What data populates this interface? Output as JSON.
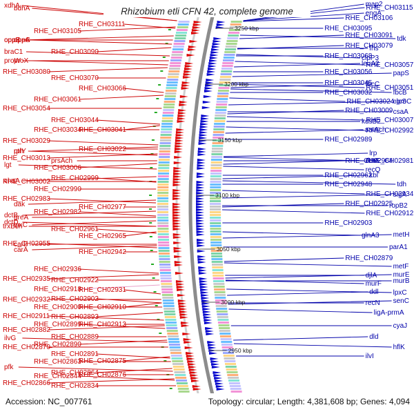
{
  "title": "Rhizobium etli CFN 42, complete genome",
  "footer": {
    "accession": "Accession: NC_007761",
    "summary": "Topology: circular; Length: 4,381,608 bp; Genes: 4,094"
  },
  "colors": {
    "reverse_strand": "#dd0000",
    "forward_strand": "#0000cc",
    "reverse_label": "#cc0000",
    "forward_label": "#0000aa",
    "highlight_label": "#e8a0c8",
    "backbone": "#8c8c8c",
    "tick_marker": "#22aa22"
  },
  "scale_ticks": [
    "3250 kbp",
    "3200 kbp",
    "3150 kbp",
    "3100 kbp",
    "3050 kbp",
    "3000 kbp",
    "2950 kbp"
  ],
  "left_labels": [
    [
      "xdhA",
      11
    ],
    [
      "bdhA",
      15
    ],
    [
      "RHE_CH03111",
      38
    ],
    [
      "RHE_CH03105",
      48
    ],
    [
      "oppF",
      61
    ],
    [
      "oppC",
      61
    ],
    [
      "oppB",
      61
    ],
    [
      "oppA",
      61
    ],
    [
      "braC1",
      78
    ],
    [
      "RHE_CH03090",
      78
    ],
    [
      "proW",
      91
    ],
    [
      "proX",
      91
    ],
    [
      "RHE_CH03080",
      107
    ],
    [
      "RHE_CH03070",
      116
    ],
    [
      "RHE_CH03066",
      131
    ],
    [
      "RHE_CH03061",
      147
    ],
    [
      "RHE_CH03054",
      160
    ],
    [
      "RHE_CH03044",
      177
    ],
    [
      "RHE_CH03041",
      191
    ],
    [
      "RHE_CH03034",
      191
    ],
    [
      "RHE_CH03029",
      207
    ],
    [
      "rplY",
      222
    ],
    [
      "RHE_CH03022",
      219
    ],
    [
      "pth",
      222
    ],
    [
      "RHE_CH03013",
      232
    ],
    [
      "prsAch",
      236
    ],
    [
      "lgt",
      242
    ],
    [
      "RHE_CH03006",
      246
    ],
    [
      "RHE_CH03002",
      266
    ],
    [
      "RHE_CH02999",
      261
    ],
    [
      "chaA",
      265
    ],
    [
      "RHE_CH02990",
      277
    ],
    [
      "RHE_CH02983",
      291
    ],
    [
      "dak",
      299
    ],
    [
      "RHE_CH02977",
      303
    ],
    [
      "RHE_CH02982",
      310
    ],
    [
      "dctB",
      315
    ],
    [
      "greA",
      318
    ],
    [
      "dctD",
      325
    ],
    [
      "lpxC",
      329
    ],
    [
      "trxBch",
      331
    ],
    [
      "RHE_CH02961",
      335
    ],
    [
      "RHE_CH02965",
      345
    ],
    [
      "carB",
      357
    ],
    [
      "RHE_CH02955",
      356
    ],
    [
      "carA",
      365
    ],
    [
      "RHE_CH02942",
      368
    ],
    [
      "RHE_CH02936",
      393
    ],
    [
      "RHE_CH02935",
      407
    ],
    [
      "RHE_CH02922",
      409
    ],
    [
      "RHE_CH02931",
      423
    ],
    [
      "RHE_CH02918",
      422
    ],
    [
      "RHE_CH02932",
      437
    ],
    [
      "RHE_CH02902",
      436
    ],
    [
      "RHE_CH02910",
      448
    ],
    [
      "RHE_CH02900",
      448
    ],
    [
      "RHE_CH02911",
      461
    ],
    [
      "RHE_CH02893",
      462
    ],
    [
      "RHE_CH02913",
      473
    ],
    [
      "RHE_CH02899",
      473
    ],
    [
      "RHE_CH02882",
      481
    ],
    [
      "RHE_CH02889",
      491
    ],
    [
      "ilvG",
      493
    ],
    [
      "RHE_CH02890",
      502
    ],
    [
      "RHE_CH02870",
      506
    ],
    [
      "RHE_CH02891",
      516
    ],
    [
      "RHE_CH02875",
      526
    ],
    [
      "RHE_CH02863",
      527
    ],
    [
      "pfk",
      535
    ],
    [
      "RHE_CH02864",
      543
    ],
    [
      "RHE_CH02876",
      546
    ],
    [
      "RHE_CH02844",
      548
    ],
    [
      "RHE_CH02866",
      558
    ],
    [
      "RHE_CH02834",
      562
    ]
  ],
  "right_labels": [
    [
      "RHE_CH03115",
      14
    ],
    [
      "map2",
      9
    ],
    [
      "RHE_CH03106",
      29
    ],
    [
      "engA",
      22
    ],
    [
      "RHE_CH03095",
      44
    ],
    [
      "RHE_CH03091",
      54
    ],
    [
      "tdk",
      59
    ],
    [
      "fhs",
      73
    ],
    [
      "RHE_CH03079",
      69
    ],
    [
      "clpP3",
      87
    ],
    [
      "RHE_CH03068",
      84
    ],
    [
      "leuA2",
      95
    ],
    [
      "RHE_CH03057",
      97
    ],
    [
      "RHE_CH03056",
      107
    ],
    [
      "papS",
      109
    ],
    [
      "RHE_CH03051",
      130
    ],
    [
      "RHE_CH03045",
      123
    ],
    [
      "fbcC",
      125
    ],
    [
      "fbcB",
      137
    ],
    [
      "RHE_CH03032",
      137
    ],
    [
      "clpS",
      150
    ],
    [
      "RHE_CH03024-proC",
      150
    ],
    [
      "csaA",
      165
    ],
    [
      "RHE_CH03009",
      163
    ],
    [
      "RHE_CH03007",
      177
    ],
    [
      "kdsB2",
      179
    ],
    [
      "aatAch",
      191
    ],
    [
      "RHE_CH02992",
      192
    ],
    [
      "RHE_CH02989",
      205
    ],
    [
      "lrp",
      225
    ],
    [
      "RHE_CH02981",
      236
    ],
    [
      "dctA",
      236
    ],
    [
      "RHE_CH02964",
      236
    ],
    [
      "recQ",
      249
    ],
    [
      "RHE_CH02962",
      257
    ],
    [
      "kbl",
      257
    ],
    [
      "tdh",
      270
    ],
    [
      "RHE_CH02948",
      270
    ],
    [
      "sigA",
      285
    ],
    [
      "RHE_CH02934",
      284
    ],
    [
      "ropB2",
      301
    ],
    [
      "RHE_CH02925",
      298
    ],
    [
      "RHE_CH02912",
      312
    ],
    [
      "RHE_CH02903",
      326
    ],
    [
      "metH",
      343
    ],
    [
      "glnA3",
      344
    ],
    [
      "parA1",
      361
    ],
    [
      "RHE_CH02879",
      377
    ],
    [
      "metF",
      389
    ],
    [
      "djlA",
      402
    ],
    [
      "murE",
      401
    ],
    [
      "murF",
      414
    ],
    [
      "murB",
      410
    ],
    [
      "ddl",
      426
    ],
    [
      "lpxC",
      427
    ],
    [
      "recN",
      442
    ],
    [
      "senC",
      439
    ],
    [
      "ligA-prmA",
      456
    ],
    [
      "cyaJ",
      475
    ],
    [
      "dld",
      491
    ],
    [
      "hflK",
      506
    ],
    [
      "ilvI",
      519
    ]
  ]
}
